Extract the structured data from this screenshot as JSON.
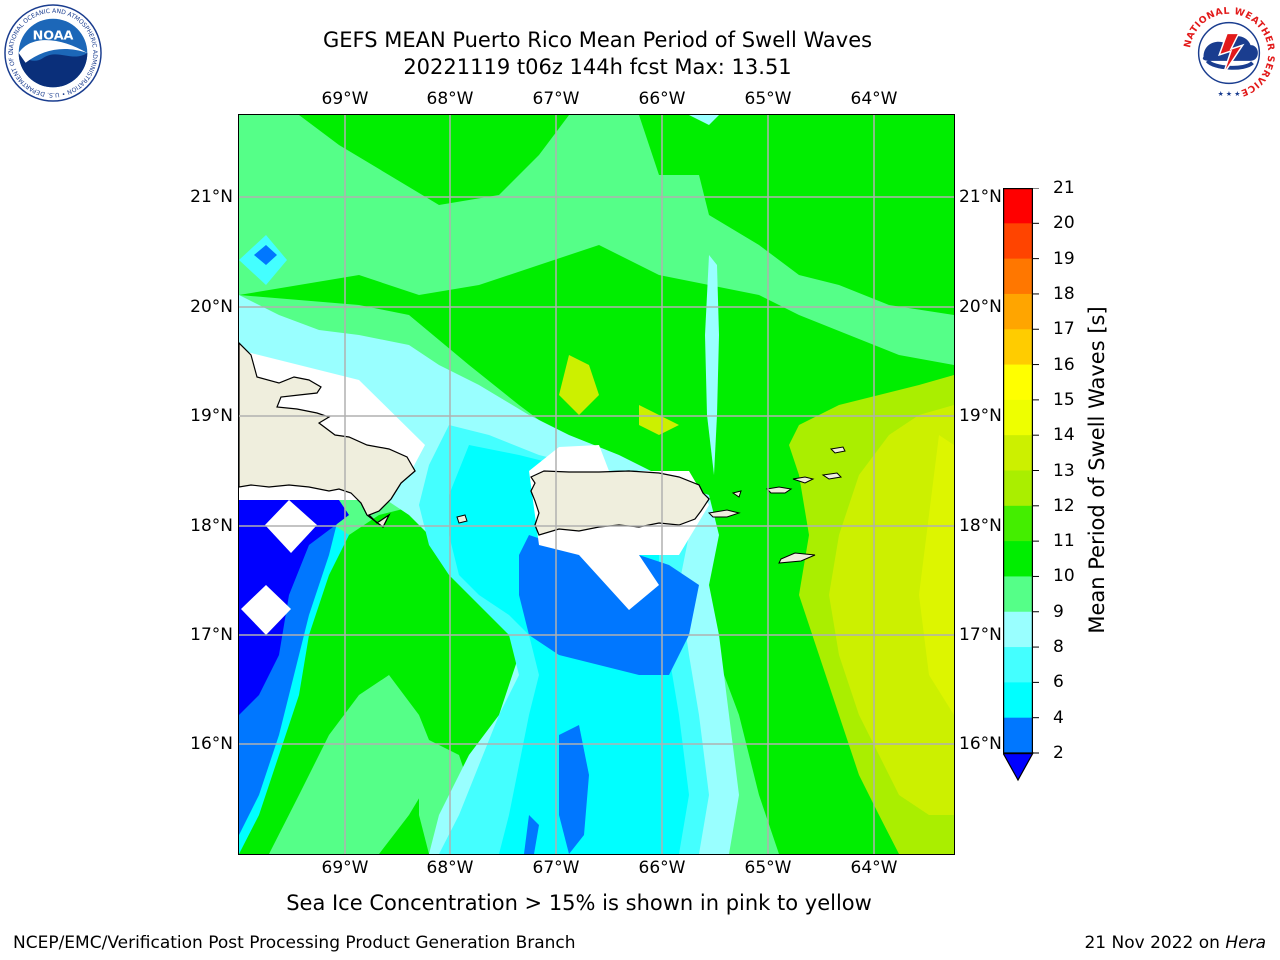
{
  "header": {
    "title_line1": "GEFS MEAN Puerto Rico Mean Period of Swell Waves",
    "title_line2": "20221119 t06z 144h fcst   Max: 13.51"
  },
  "map": {
    "longitude_labels": [
      "69°W",
      "68°W",
      "67°W",
      "66°W",
      "65°W",
      "64°W"
    ],
    "latitude_labels": [
      "21°N",
      "20°N",
      "19°N",
      "18°N",
      "17°N",
      "16°N"
    ],
    "land_color": "#efeedd",
    "grid_color": "#b0b0b0"
  },
  "colorbar": {
    "title": "Mean Period of Swell Waves [s]",
    "tick_labels": [
      "21",
      "20",
      "19",
      "18",
      "17",
      "16",
      "15",
      "14",
      "13",
      "12",
      "11",
      "10",
      "9",
      "8",
      "6",
      "4",
      "2"
    ],
    "colors_low_to_high": [
      "#0000ff",
      "#0077ff",
      "#00ffff",
      "#44ffff",
      "#99ffff",
      "#55ff88",
      "#00ee00",
      "#44ee00",
      "#aaee00",
      "#ccf000",
      "#eeff00",
      "#ffff00",
      "#ffcc00",
      "#ffa500",
      "#ff7700",
      "#ff4400",
      "#ff0000"
    ]
  },
  "footnote": "Sea Ice Concentration > 15% is shown in pink to yellow",
  "credits": {
    "left": "NCEP/EMC/Verification Post Processing Product Generation Branch",
    "right_date": "21 Nov 2022 on",
    "right_host": "Hera"
  },
  "logos": {
    "noaa": {
      "text": "NOAA",
      "ring_text": "NATIONAL OCEANIC AND ATMOSPHERIC ADMINISTRATION • U.S. DEPARTMENT OF COMMERCE"
    },
    "nws": {
      "ring_text": "NATIONAL WEATHER SERVICE"
    }
  }
}
